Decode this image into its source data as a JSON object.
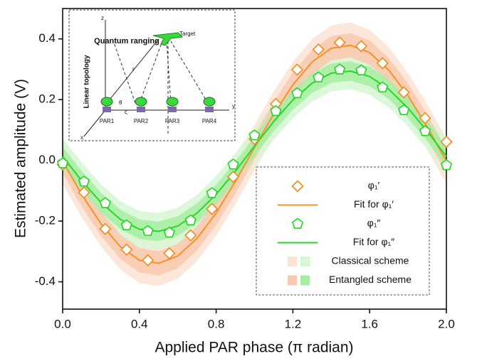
{
  "chart_data": {
    "type": "scatter",
    "x_label": "Applied PAR phase (π radian)",
    "y_label": "Estimated amplitude (V)",
    "xlim": [
      0,
      2
    ],
    "ylim": [
      -0.49,
      0.5
    ],
    "xticks": [
      {
        "value": 0,
        "label": "0.0"
      },
      0.4,
      0.8,
      1.2,
      1.6,
      {
        "value": 2,
        "label": "2.0"
      }
    ],
    "yticks": [
      -0.4,
      -0.2,
      {
        "value": 0,
        "label": "0.0"
      },
      0.2,
      0.4
    ],
    "legend": "lower right",
    "series": [
      {
        "name": "φ₁′",
        "type": "scatter",
        "marker": "diamond",
        "color": "#f08c1e",
        "x": [
          0,
          0.111,
          0.222,
          0.333,
          0.444,
          0.556,
          0.667,
          0.778,
          0.889,
          1.0,
          1.111,
          1.222,
          1.333,
          1.444,
          1.556,
          1.667,
          1.778,
          1.889,
          2.0
        ],
        "values": [
          -0.014,
          -0.106,
          -0.226,
          -0.294,
          -0.329,
          -0.306,
          -0.247,
          -0.16,
          -0.054,
          0.07,
          0.186,
          0.299,
          0.365,
          0.388,
          0.376,
          0.32,
          0.224,
          0.139,
          0.061
        ]
      },
      {
        "name": "Fit for φ₁′",
        "type": "line",
        "color": "#f5922a",
        "x": [
          0,
          0.1,
          0.2,
          0.3,
          0.4,
          0.5,
          0.6,
          0.7,
          0.8,
          0.9,
          1.0,
          1.1,
          1.2,
          1.3,
          1.4,
          1.5,
          1.6,
          1.7,
          1.8,
          1.9,
          2.0
        ],
        "values": [
          -0.003,
          -0.113,
          -0.209,
          -0.284,
          -0.329,
          -0.339,
          -0.315,
          -0.257,
          -0.173,
          -0.07,
          0.043,
          0.152,
          0.249,
          0.324,
          0.369,
          0.379,
          0.355,
          0.297,
          0.213,
          0.11,
          -0.003
        ]
      },
      {
        "name": "φ₁″",
        "type": "scatter",
        "marker": "pentagon",
        "color": "#22d622",
        "x": [
          0,
          0.111,
          0.222,
          0.333,
          0.444,
          0.556,
          0.667,
          0.778,
          0.889,
          1.0,
          1.111,
          1.222,
          1.333,
          1.444,
          1.556,
          1.667,
          1.778,
          1.889,
          2.0
        ],
        "values": [
          -0.01,
          -0.07,
          -0.141,
          -0.214,
          -0.233,
          -0.238,
          -0.198,
          -0.108,
          -0.014,
          0.082,
          0.162,
          0.221,
          0.273,
          0.299,
          0.296,
          0.24,
          0.165,
          0.096,
          -0.016
        ]
      },
      {
        "name": "Fit for φ₁″",
        "type": "line",
        "color": "#2ad62a",
        "x": [
          0,
          0.1,
          0.2,
          0.3,
          0.4,
          0.5,
          0.6,
          0.7,
          0.8,
          0.9,
          1.0,
          1.1,
          1.2,
          1.3,
          1.4,
          1.5,
          1.6,
          1.7,
          1.8,
          1.9,
          2.0
        ],
        "values": [
          0.013,
          -0.068,
          -0.139,
          -0.194,
          -0.227,
          -0.234,
          -0.216,
          -0.174,
          -0.112,
          -0.036,
          0.047,
          0.128,
          0.199,
          0.254,
          0.287,
          0.294,
          0.276,
          0.234,
          0.172,
          0.096,
          0.013
        ]
      },
      {
        "name": "Classical scheme",
        "type": "band",
        "colors": [
          "#fde3d3",
          "#d6f7d3"
        ],
        "halfwidths": [
          0.075,
          0.06
        ]
      },
      {
        "name": "Entangled scheme",
        "type": "band",
        "colors": [
          "#f9c9ae",
          "#a6eda1"
        ],
        "halfwidths": [
          0.04,
          0.032
        ]
      }
    ],
    "inset_labels": [
      "z",
      "Target",
      "Quantum ranging",
      "Linear topology",
      "r",
      "θ",
      "ς",
      "PAR1",
      "PAR2",
      "PAR3",
      "PAR4",
      "y",
      "x"
    ]
  }
}
